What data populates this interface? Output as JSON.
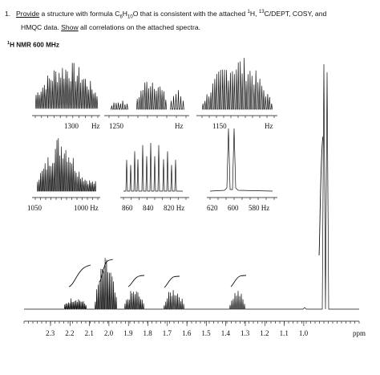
{
  "question": {
    "number": "1.",
    "line1_parts": [
      "Provide",
      " a structure with formula ",
      "C",
      "6",
      "H",
      "10",
      "O",
      " that is consistent with the attached ",
      "1",
      "H, ",
      "13",
      "C/DEPT, COSY, and"
    ],
    "line2_parts": [
      "HMQC data. ",
      "Show",
      " all correlations on the attached spectra."
    ]
  },
  "spectrum_title": "1H NMR 600 MHz",
  "spectrum_title_sup": "1",
  "spectrum_title_rest": "H NMR 600 MHz",
  "insets": {
    "panel1": {
      "label_left": "1300",
      "unit_left": "Hz",
      "label_right": "1250"
    },
    "panel2": {
      "unit": "Hz"
    },
    "panel3": {
      "label": "1150",
      "unit": "Hz"
    },
    "panel4": {
      "label_left": "1050",
      "label_right": "1000 Hz"
    },
    "panel5": {
      "ticks": [
        "860",
        "840",
        "820 Hz"
      ]
    },
    "panel6": {
      "ticks": [
        "620",
        "600",
        "580 Hz"
      ]
    }
  },
  "main_axis": {
    "ticks": [
      "2.3",
      "2.2",
      "2.1",
      "2.0",
      "1.9",
      "1.8",
      "1.7",
      "1.6",
      "1.5",
      "1.4",
      "1.3",
      "1.2",
      "1.1",
      "1.0"
    ],
    "unit": "ppm"
  },
  "colors": {
    "ink": "#111111",
    "background": "#ffffff"
  }
}
